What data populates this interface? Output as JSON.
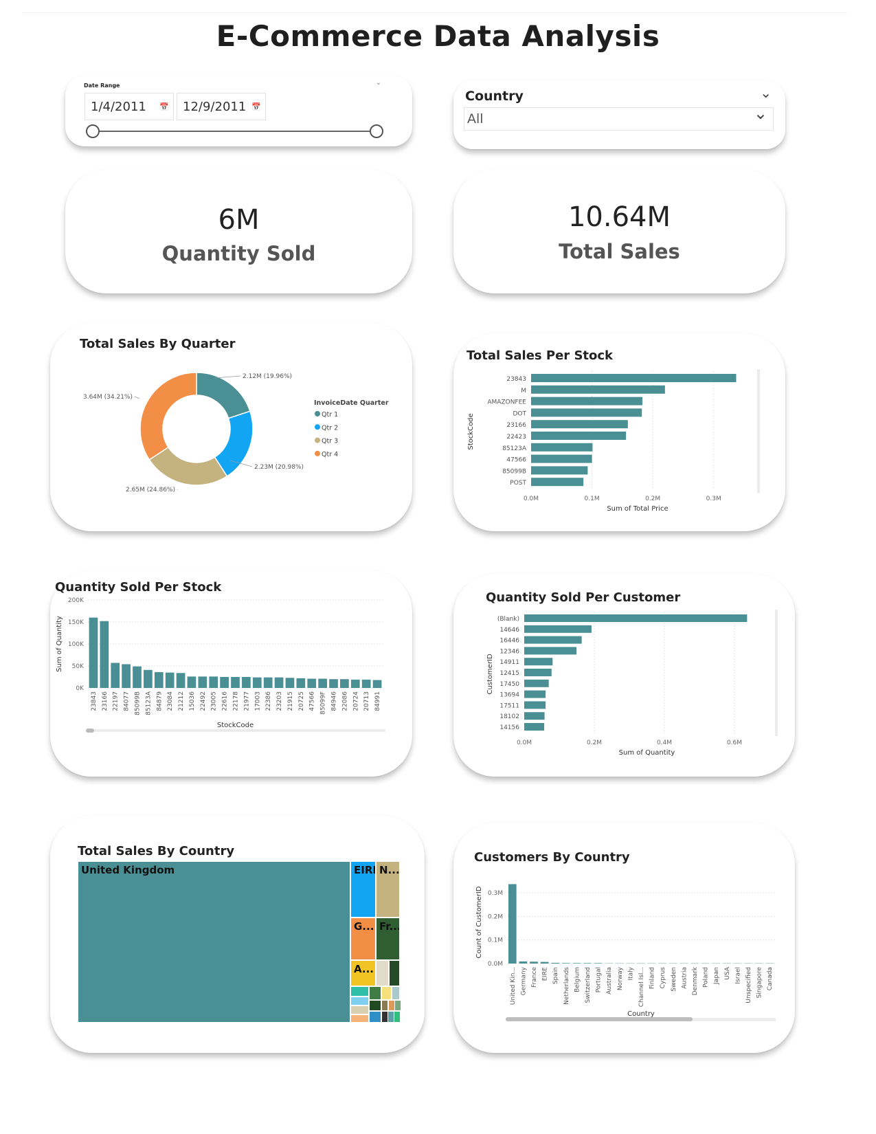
{
  "page": {
    "title": "E-Commerce Data Analysis"
  },
  "filters": {
    "date": {
      "label": "Date Range",
      "start": "1/4/2011",
      "end": "12/9/2011"
    },
    "country": {
      "label": "Country",
      "value": "All"
    }
  },
  "kpis": {
    "quantity": {
      "value": "6M",
      "label": "Quantity Sold"
    },
    "sales": {
      "value": "10.64M",
      "label": "Total Sales"
    }
  },
  "charts": {
    "quarter": {
      "title": "Total Sales By Quarter",
      "legend_title": "InvoiceDate Quarter"
    },
    "stock_sales": {
      "title": "Total Sales Per Stock",
      "xlabel": "Sum of Total Price",
      "ylabel": "StockCode"
    },
    "stock_qty": {
      "title": "Quantity Sold Per Stock",
      "xlabel": "StockCode",
      "ylabel": "Sum of Quantity"
    },
    "customer_qty": {
      "title": "Quantity Sold Per Customer",
      "xlabel": "Sum of Quantity",
      "ylabel": "CustomerID"
    },
    "country_sales": {
      "title": "Total Sales By Country"
    },
    "country_customers": {
      "title": "Customers By Country",
      "xlabel": "Country",
      "ylabel": "Count of CustomerID"
    }
  },
  "colors": {
    "teal": "#4a8f94",
    "blue": "#12a5f4",
    "tan": "#c4b27f",
    "orange": "#f28e46",
    "darkgreen": "#2e5e32",
    "yellow": "#f1c324",
    "grid": "#e6e6e6"
  },
  "chart_data": [
    {
      "id": "quarter",
      "type": "pie",
      "title": "Total Sales By Quarter",
      "categories": [
        "Qtr 1",
        "Qtr 2",
        "Qtr 3",
        "Qtr 4"
      ],
      "values": [
        2.12,
        2.23,
        2.65,
        3.64
      ],
      "labels": [
        "2.12M (19.96%)",
        "2.23M (20.98%)",
        "2.65M (24.86%)",
        "3.64M (34.21%)"
      ],
      "colors": [
        "#4a8f94",
        "#12a5f4",
        "#c4b27f",
        "#f28e46"
      ],
      "legend": "right"
    },
    {
      "id": "stock_sales",
      "type": "bar",
      "orientation": "horizontal",
      "title": "Total Sales Per Stock",
      "categories": [
        "23843",
        "M",
        "AMAZONFEE",
        "DOT",
        "23166",
        "22423",
        "85123A",
        "47566",
        "85099B",
        "POST"
      ],
      "values": [
        0.337,
        0.22,
        0.183,
        0.182,
        0.159,
        0.156,
        0.101,
        0.1,
        0.093,
        0.086
      ],
      "ticks": [
        "0.0M",
        "0.1M",
        "0.2M",
        "0.3M"
      ],
      "xlim": [
        0,
        0.35
      ],
      "xlabel": "Sum of Total Price",
      "ylabel": "StockCode"
    },
    {
      "id": "stock_qty",
      "type": "bar",
      "title": "Quantity Sold Per Stock",
      "categories": [
        "23843",
        "23166",
        "22197",
        "84077",
        "85099B",
        "85123A",
        "84879",
        "23084",
        "21212",
        "15036",
        "22492",
        "23005",
        "22616",
        "22178",
        "21977",
        "17003",
        "22386",
        "23203",
        "21915",
        "20725",
        "47566",
        "85099F",
        "84946",
        "22086",
        "20724",
        "20713",
        "84991"
      ],
      "values": [
        160000,
        152000,
        57000,
        54000,
        49000,
        41000,
        36000,
        35000,
        34000,
        26000,
        26000,
        26000,
        25000,
        25000,
        25000,
        24000,
        24000,
        24000,
        23000,
        22000,
        21000,
        21000,
        20000,
        20000,
        19000,
        19000,
        18000
      ],
      "ticks": [
        "0K",
        "50K",
        "100K",
        "150K",
        "200K"
      ],
      "ylim": [
        0,
        200000
      ],
      "xlabel": "StockCode",
      "ylabel": "Sum of Quantity"
    },
    {
      "id": "customer_qty",
      "type": "bar",
      "orientation": "horizontal",
      "title": "Quantity Sold Per Customer",
      "categories": [
        "(Blank)",
        "14646",
        "16446",
        "12346",
        "14911",
        "12415",
        "17450",
        "13694",
        "17511",
        "18102",
        "14156"
      ],
      "values": [
        0.636,
        0.192,
        0.164,
        0.149,
        0.081,
        0.078,
        0.07,
        0.061,
        0.061,
        0.058,
        0.057
      ],
      "ticks": [
        "0.0M",
        "0.2M",
        "0.4M",
        "0.6M"
      ],
      "xlim": [
        0,
        0.7
      ],
      "xlabel": "Sum of Quantity",
      "ylabel": "CustomerID"
    },
    {
      "id": "country_customers",
      "type": "bar",
      "title": "Customers By Country",
      "categories": [
        "United Kin...",
        "Germany",
        "France",
        "EIRE",
        "Spain",
        "Netherlands",
        "Belgium",
        "Switzerland",
        "Portugal",
        "Australia",
        "Norway",
        "Italy",
        "Channel Isl...",
        "Finland",
        "Cyprus",
        "Sweden",
        "Austria",
        "Denmark",
        "Poland",
        "Japan",
        "USA",
        "Israel",
        "Unspecified",
        "Singapore",
        "Canada"
      ],
      "values": [
        0.337,
        0.009,
        0.008,
        0.007,
        0.003,
        0.002,
        0.002,
        0.002,
        0.002,
        0.001,
        0.001,
        0.001,
        0.001,
        0.001,
        0.001,
        0.001,
        0.001,
        0.001,
        0.001,
        0.001,
        0.001,
        0.001,
        0.001,
        0.001,
        0.001
      ],
      "ticks": [
        "0.0M",
        "0.1M",
        "0.2M",
        "0.3M"
      ],
      "ylim": [
        0,
        0.35
      ],
      "xlabel": "Country",
      "ylabel": "Count of CustomerID"
    },
    {
      "id": "country_sales",
      "type": "treemap",
      "title": "Total Sales By Country",
      "labels": [
        "United Kingdom",
        "EIRE",
        "N...",
        "G...",
        "Fr...",
        "A..."
      ]
    }
  ]
}
